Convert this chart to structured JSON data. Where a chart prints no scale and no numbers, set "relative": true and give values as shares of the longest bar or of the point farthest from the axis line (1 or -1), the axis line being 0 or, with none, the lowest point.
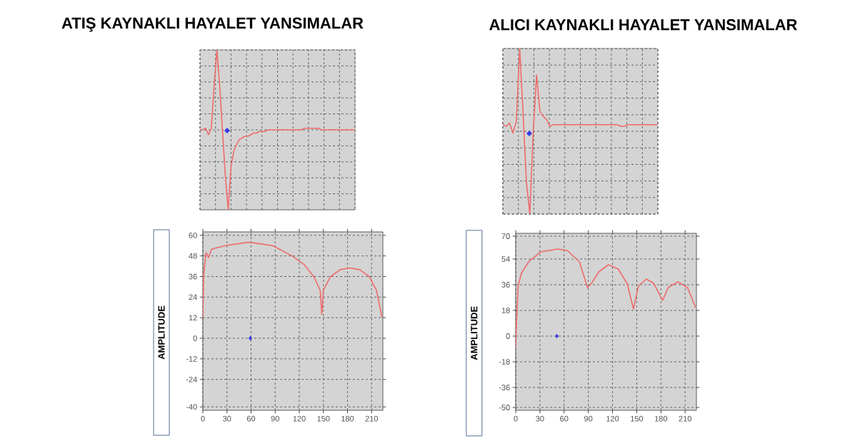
{
  "chart_data": [
    {
      "type": "line",
      "title": "ATIŞ KAYNAKLI HAYALET YANSIMALAR",
      "relative": true,
      "grid": true,
      "categories": [
        null,
        null,
        null,
        null,
        null,
        null,
        null,
        null,
        null,
        null,
        null,
        null,
        null,
        null,
        null,
        null,
        null,
        null,
        null,
        null,
        null,
        null,
        null,
        null,
        null,
        null,
        null,
        null,
        null,
        null,
        null,
        null,
        null,
        null,
        null,
        null,
        null,
        null,
        null,
        null,
        null,
        null,
        null,
        null,
        null,
        null,
        null,
        null,
        null,
        null,
        null,
        null,
        null,
        null,
        null,
        null
      ],
      "series": [
        {
          "color": "#ee6b6b",
          "values": [
            0.5,
            0.5,
            0.51,
            0.47,
            0.51,
            0.77,
            1.0,
            0.77,
            0.49,
            0.21,
            0.0,
            0.27,
            0.37,
            0.41,
            0.44,
            0.45,
            0.46,
            0.46,
            0.47,
            0.48,
            0.48,
            0.49,
            0.49,
            0.49,
            0.5,
            0.5,
            0.5,
            0.5,
            0.5,
            0.5,
            0.5,
            0.5,
            0.5,
            0.5,
            0.5,
            0.5,
            0.5,
            0.51,
            0.51,
            0.51,
            0.51,
            0.51,
            0.51,
            0.5,
            0.5,
            0.5,
            0.5,
            0.5,
            0.5,
            0.5,
            0.5,
            0.5,
            0.5,
            0.5,
            0.5,
            0.5
          ]
        }
      ]
    },
    {
      "type": "line",
      "title": "ALICI KAYNAKLI HAYALET YANSIMALAR",
      "relative": true,
      "grid": true,
      "categories": [
        null,
        null,
        null,
        null,
        null,
        null,
        null,
        null,
        null,
        null,
        null,
        null,
        null,
        null,
        null,
        null,
        null,
        null,
        null,
        null,
        null,
        null,
        null,
        null,
        null,
        null,
        null,
        null,
        null,
        null,
        null,
        null,
        null,
        null,
        null,
        null,
        null,
        null,
        null,
        null,
        null,
        null,
        null,
        null,
        null,
        null,
        null
      ],
      "series": [
        {
          "color": "#ee6b6b",
          "values": [
            0.54,
            0.53,
            0.55,
            0.49,
            0.56,
            1.0,
            0.61,
            0.19,
            0.0,
            0.49,
            0.84,
            0.62,
            0.59,
            0.57,
            0.53,
            0.54,
            0.54,
            0.54,
            0.54,
            0.54,
            0.54,
            0.54,
            0.54,
            0.54,
            0.54,
            0.54,
            0.54,
            0.54,
            0.54,
            0.54,
            0.54,
            0.54,
            0.54,
            0.54,
            0.54,
            0.53,
            0.53,
            0.54,
            0.54,
            0.54,
            0.54,
            0.54,
            0.54,
            0.54,
            0.54,
            0.54,
            0.54
          ]
        }
      ]
    },
    {
      "type": "line",
      "ylabel": "AMPLITUDE",
      "grid": true,
      "xlim": [
        0,
        224
      ],
      "ylim": [
        -42,
        62
      ],
      "xticks": [
        0,
        30,
        60,
        90,
        120,
        150,
        180,
        210
      ],
      "yticks": [
        60,
        48,
        36,
        24,
        12,
        0,
        -12,
        -24,
        -40
      ],
      "x": [
        0,
        1,
        4,
        7,
        11,
        28,
        57,
        87,
        111,
        126,
        138,
        146,
        148,
        150,
        159,
        171,
        183,
        195,
        207,
        216,
        223
      ],
      "series": [
        {
          "color": "#ee6b6b",
          "values": [
            12,
            37,
            50,
            47,
            52,
            54,
            56,
            54,
            48,
            43,
            36,
            28,
            14,
            28,
            36,
            40,
            41,
            40,
            36,
            28,
            12
          ]
        },
        {
          "type": "scatter",
          "marker": "diamond",
          "color": "#3a3ae8",
          "x": [
            59
          ],
          "values": [
            0
          ]
        }
      ]
    },
    {
      "type": "line",
      "ylabel": "AMPLITUDE",
      "grid": true,
      "xlim": [
        0,
        224
      ],
      "ylim": [
        -52,
        72
      ],
      "xticks": [
        0,
        30,
        60,
        90,
        120,
        150,
        180,
        210
      ],
      "yticks": [
        70,
        54,
        36,
        18,
        0,
        -18,
        -36,
        -50
      ],
      "x": [
        0,
        1,
        3,
        7,
        16,
        31,
        52,
        64,
        79,
        89,
        94,
        103,
        115,
        127,
        138,
        146,
        152,
        162,
        171,
        182,
        189,
        201,
        213,
        223
      ],
      "series": [
        {
          "color": "#ee6b6b",
          "values": [
            -8,
            10,
            35,
            44,
            52,
            59,
            61,
            60,
            52,
            34,
            37,
            45,
            50,
            47,
            37,
            19,
            35,
            40,
            37,
            25,
            34,
            38,
            34,
            20
          ]
        },
        {
          "type": "scatter",
          "marker": "diamond",
          "color": "#3a3ae8",
          "x": [
            51
          ],
          "values": [
            0
          ]
        }
      ]
    }
  ]
}
